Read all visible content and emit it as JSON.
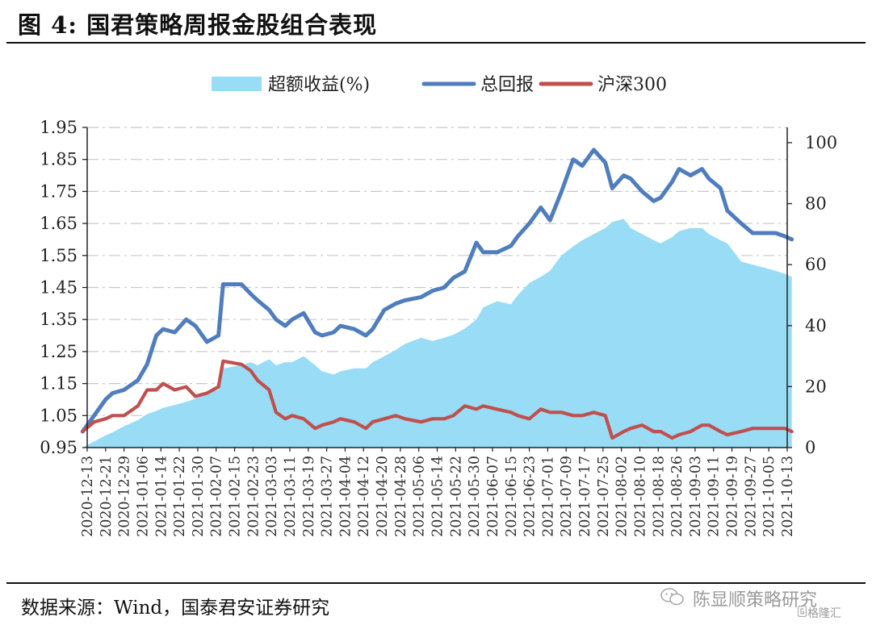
{
  "figure": {
    "title": "图 4:  国君策略周报金股组合表现",
    "source": "数据来源：Wind，国泰君安证券研究"
  },
  "watermark": {
    "text": "陈显顺策略研究",
    "brand": "格隆汇"
  },
  "chart_data": {
    "type": "line",
    "title": "",
    "legend_position": "top",
    "x_tick_labels": [
      "2020-12-13",
      "2020-12-21",
      "2020-12-29",
      "2021-01-06",
      "2021-01-14",
      "2021-01-22",
      "2021-01-30",
      "2021-02-07",
      "2021-02-15",
      "2021-02-23",
      "2021-03-03",
      "2021-03-11",
      "2021-03-19",
      "2021-03-27",
      "2021-04-04",
      "2021-04-12",
      "2021-04-20",
      "2021-04-28",
      "2021-05-06",
      "2021-05-14",
      "2021-05-22",
      "2021-05-30",
      "2021-06-07",
      "2021-06-15",
      "2021-06-23",
      "2021-07-01",
      "2021-07-09",
      "2021-07-17",
      "2021-07-25",
      "2021-08-02",
      "2021-08-10",
      "2021-08-18",
      "2021-08-26",
      "2021-09-03",
      "2021-09-11",
      "2021-09-19",
      "2021-09-27",
      "2021-10-05",
      "2021-10-13"
    ],
    "y_left": {
      "ticks": [
        "0.95",
        "1.05",
        "1.15",
        "1.25",
        "1.35",
        "1.45",
        "1.55",
        "1.65",
        "1.75",
        "1.85",
        "1.95"
      ],
      "range": [
        0.95,
        1.95
      ]
    },
    "y_right": {
      "ticks": [
        "0",
        "20",
        "40",
        "60",
        "80",
        "100"
      ],
      "range": [
        0,
        105
      ]
    },
    "grid": "horizontal dashed",
    "x_dates": [
      "2020-12-11",
      "2020-12-16",
      "2020-12-21",
      "2020-12-24",
      "2020-12-29",
      "2021-01-04",
      "2021-01-08",
      "2021-01-12",
      "2021-01-15",
      "2021-01-20",
      "2021-01-25",
      "2021-01-29",
      "2021-02-03",
      "2021-02-08",
      "2021-02-10",
      "2021-02-18",
      "2021-02-22",
      "2021-02-25",
      "2021-03-02",
      "2021-03-05",
      "2021-03-09",
      "2021-03-12",
      "2021-03-17",
      "2021-03-22",
      "2021-03-25",
      "2021-03-30",
      "2021-04-02",
      "2021-04-08",
      "2021-04-13",
      "2021-04-16",
      "2021-04-21",
      "2021-04-26",
      "2021-04-30",
      "2021-05-07",
      "2021-05-12",
      "2021-05-17",
      "2021-05-21",
      "2021-05-26",
      "2021-05-31",
      "2021-06-03",
      "2021-06-09",
      "2021-06-15",
      "2021-06-18",
      "2021-06-23",
      "2021-06-28",
      "2021-07-02",
      "2021-07-07",
      "2021-07-12",
      "2021-07-16",
      "2021-07-21",
      "2021-07-26",
      "2021-07-29",
      "2021-08-03",
      "2021-08-06",
      "2021-08-11",
      "2021-08-16",
      "2021-08-19",
      "2021-08-24",
      "2021-08-27",
      "2021-09-01",
      "2021-09-06",
      "2021-09-09",
      "2021-09-14",
      "2021-09-17",
      "2021-09-23",
      "2021-09-28",
      "2021-10-08",
      "2021-10-12",
      "2021-10-15"
    ],
    "series": [
      {
        "name": "超额收益(%)",
        "type": "area",
        "axis": "right",
        "color": "#99dcf5",
        "values": [
          0,
          2,
          4,
          5,
          7,
          9,
          11,
          12,
          13,
          14,
          15,
          16,
          18,
          19,
          26,
          27,
          28,
          27,
          29,
          27,
          28,
          28,
          30,
          27,
          25,
          24,
          25,
          26,
          26,
          28,
          30,
          32,
          34,
          36,
          35,
          36,
          37,
          39,
          42,
          46,
          48,
          47,
          50,
          54,
          56,
          58,
          63,
          66,
          68,
          70,
          72,
          74,
          75,
          72,
          70,
          68,
          67,
          69,
          71,
          72,
          72,
          70,
          68,
          67,
          61,
          60,
          58,
          57,
          56
        ]
      },
      {
        "name": "总回报",
        "type": "line",
        "axis": "left",
        "color": "#4f7dbd",
        "values": [
          1.0,
          1.05,
          1.1,
          1.12,
          1.13,
          1.16,
          1.21,
          1.3,
          1.32,
          1.31,
          1.35,
          1.33,
          1.28,
          1.3,
          1.46,
          1.46,
          1.43,
          1.41,
          1.38,
          1.35,
          1.33,
          1.35,
          1.37,
          1.31,
          1.3,
          1.31,
          1.33,
          1.32,
          1.3,
          1.32,
          1.38,
          1.4,
          1.41,
          1.42,
          1.44,
          1.45,
          1.48,
          1.5,
          1.59,
          1.56,
          1.56,
          1.58,
          1.61,
          1.65,
          1.7,
          1.66,
          1.75,
          1.85,
          1.83,
          1.88,
          1.84,
          1.76,
          1.8,
          1.79,
          1.75,
          1.72,
          1.73,
          1.78,
          1.82,
          1.8,
          1.82,
          1.79,
          1.76,
          1.69,
          1.65,
          1.62,
          1.62,
          1.61,
          1.6
        ]
      },
      {
        "name": "沪深300",
        "type": "line",
        "axis": "left",
        "color": "#c0504d",
        "values": [
          1.0,
          1.03,
          1.04,
          1.05,
          1.05,
          1.08,
          1.13,
          1.13,
          1.15,
          1.13,
          1.14,
          1.11,
          1.12,
          1.14,
          1.22,
          1.21,
          1.19,
          1.16,
          1.13,
          1.06,
          1.04,
          1.05,
          1.04,
          1.01,
          1.02,
          1.03,
          1.04,
          1.03,
          1.01,
          1.03,
          1.04,
          1.05,
          1.04,
          1.03,
          1.04,
          1.04,
          1.05,
          1.08,
          1.07,
          1.08,
          1.07,
          1.06,
          1.05,
          1.04,
          1.07,
          1.06,
          1.06,
          1.05,
          1.05,
          1.06,
          1.05,
          0.98,
          1.0,
          1.01,
          1.02,
          1.0,
          1.0,
          0.98,
          0.99,
          1.0,
          1.02,
          1.02,
          1.0,
          0.99,
          1.0,
          1.01,
          1.01,
          1.01,
          1.0
        ]
      }
    ]
  }
}
